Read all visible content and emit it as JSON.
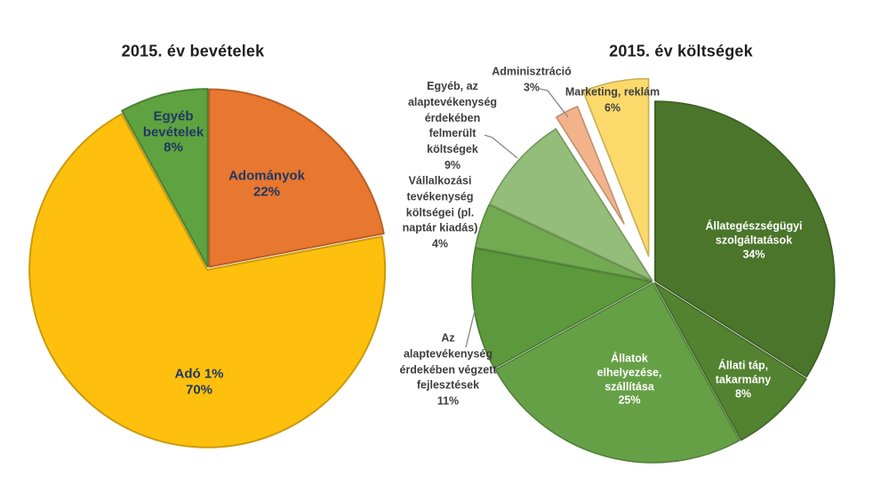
{
  "chart_data": [
    {
      "type": "pie",
      "title": "2015. év bevételek",
      "direction": "clockwise",
      "start_angle": "top",
      "legend": "none",
      "slices": [
        {
          "label": "Adományok",
          "value_pct": 22,
          "color": "#E8772F",
          "display": "Adományok\n22%",
          "label_placement": "inside",
          "exploded": false
        },
        {
          "label": "Adó 1%",
          "value_pct": 70,
          "color": "#FEC00D",
          "display": "Adó 1%\n70%",
          "label_placement": "inside",
          "exploded": false
        },
        {
          "label": "Egyéb bevételek",
          "value_pct": 8,
          "color": "#5EA33F",
          "display": "Egyéb\nbevételek\n8%",
          "label_placement": "inside",
          "exploded": false
        }
      ]
    },
    {
      "type": "pie",
      "title": "2015. év költségek",
      "direction": "clockwise",
      "start_angle": "top",
      "legend": "none",
      "slices": [
        {
          "label": "Állategészségügyi szolgáltatások",
          "value_pct": 34,
          "color": "#4A752B",
          "display": "Állategészségügyi\nszolgáltatások\n34%",
          "label_placement": "inside",
          "exploded": false
        },
        {
          "label": "Állati táp, takarmány",
          "value_pct": 8,
          "color": "#538231",
          "display": "Állati táp,\ntakarmány\n8%",
          "label_placement": "inside",
          "exploded": false
        },
        {
          "label": "Állatok elhelyezése, szállítása",
          "value_pct": 25,
          "color": "#65A046",
          "display": "Állatok\nelhelyezése,\nszállítása\n25%",
          "label_placement": "inside",
          "exploded": false
        },
        {
          "label": "Az alaptevékenység érdekében végzett fejlesztések",
          "value_pct": 11,
          "color": "#5C983C",
          "display": "Az\nalaptevékenység\nérdekében végzett\nfejlesztések\n11%",
          "label_placement": "outside",
          "exploded": false
        },
        {
          "label": "Vállalkozási tevékenység költségei (pl. naptár kiadás)",
          "value_pct": 4,
          "color": "#72A951",
          "display": "Vállalkozási\ntevékenység\nköltségei (pl.\nnaptár kiadás)\n4%",
          "label_placement": "outside",
          "exploded": false
        },
        {
          "label": "Egyéb, az alaptevékenység érdekében felmerült költségek",
          "value_pct": 9,
          "color": "#93BD78",
          "display": "Egyéb, az\nalaptevékenység\nérdekében\nfelmerült\nköltségek\n9%",
          "label_placement": "outside",
          "exploded": false
        },
        {
          "label": "Adminisztráció",
          "value_pct": 3,
          "color": "#F3B38A",
          "display": "Adminisztráció\n3%",
          "label_placement": "outside",
          "exploded": true
        },
        {
          "label": "Marketing, reklám",
          "value_pct": 6,
          "color": "#FBD96B",
          "display": "Marketing, reklám\n6%",
          "label_placement": "outside",
          "exploded": true
        }
      ]
    }
  ]
}
